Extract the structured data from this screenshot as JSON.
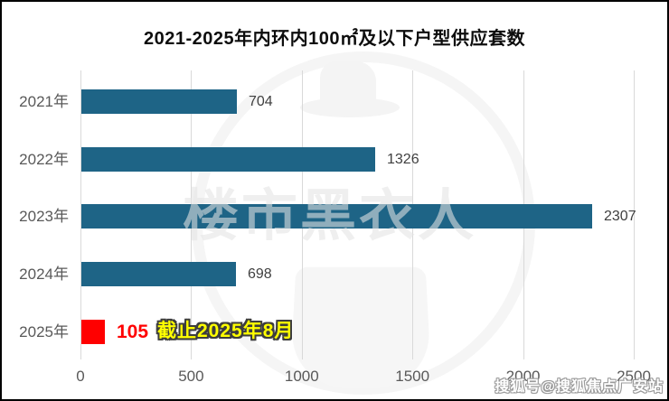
{
  "title": "2021-2025年内环内100㎡及以下户型供应套数",
  "chart_data": {
    "type": "bar",
    "orientation": "horizontal",
    "title": "2021-2025年内环内100㎡及以下户型供应套数",
    "categories": [
      "2021年",
      "2022年",
      "2023年",
      "2024年",
      "2025年"
    ],
    "values": [
      704,
      1326,
      2307,
      698,
      105
    ],
    "highlight_index": 4,
    "annotation": "截止2025年8月",
    "x_ticks": [
      0,
      500,
      1000,
      1500,
      2000,
      2500
    ],
    "xlim": [
      0,
      2500
    ],
    "grid": true,
    "legend": false,
    "bar_color": "#1e6486",
    "highlight_bar_color": "#ff0000",
    "highlight_value_color": "#ff0000",
    "value_label_color": "#3f3f3f",
    "axis_label_color": "#595959",
    "grid_color": "#d9d9d9",
    "annotation_color": "#ffff00"
  },
  "watermarks": {
    "center_text": "楼市黑衣人",
    "bottom_right_text": "搜狐号@搜狐焦点广安站"
  }
}
